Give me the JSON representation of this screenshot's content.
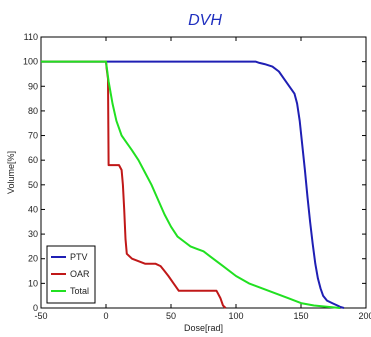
{
  "chart_data": {
    "type": "line",
    "title": "DVH",
    "xlabel": "Dose[rad]",
    "ylabel": "Volume[%]",
    "xlim": [
      -50,
      200
    ],
    "ylim": [
      0,
      110
    ],
    "x_ticks": [
      "-50",
      "0",
      "50",
      "100",
      "150",
      "200"
    ],
    "y_ticks": [
      "0",
      "10",
      "20",
      "30",
      "40",
      "50",
      "60",
      "70",
      "80",
      "90",
      "100",
      "110"
    ],
    "grid": false,
    "legend_position": "bottom-left",
    "series": [
      {
        "name": "PTV",
        "color": "#1f1fb4",
        "points": [
          [
            -50,
            100
          ],
          [
            0,
            100
          ],
          [
            50,
            100
          ],
          [
            100,
            100
          ],
          [
            115,
            100
          ],
          [
            118,
            99.5
          ],
          [
            122,
            99
          ],
          [
            128,
            98
          ],
          [
            133,
            96
          ],
          [
            137,
            93
          ],
          [
            141,
            90
          ],
          [
            145,
            87
          ],
          [
            147,
            83
          ],
          [
            149,
            76
          ],
          [
            151,
            66
          ],
          [
            153,
            56
          ],
          [
            155,
            45
          ],
          [
            157,
            35
          ],
          [
            159,
            26
          ],
          [
            161,
            18
          ],
          [
            163,
            12
          ],
          [
            165,
            8
          ],
          [
            167,
            5
          ],
          [
            170,
            3
          ],
          [
            174,
            2
          ],
          [
            178,
            1
          ],
          [
            180,
            0.5
          ],
          [
            183,
            0
          ]
        ]
      },
      {
        "name": "OAR",
        "color": "#c01818",
        "points": [
          [
            -50,
            100
          ],
          [
            0,
            100
          ],
          [
            0.5,
            97
          ],
          [
            1.5,
            93
          ],
          [
            2,
            58
          ],
          [
            10,
            58
          ],
          [
            12,
            56
          ],
          [
            13,
            50
          ],
          [
            14,
            40
          ],
          [
            15,
            28
          ],
          [
            16,
            22
          ],
          [
            20,
            20
          ],
          [
            25,
            19
          ],
          [
            30,
            18
          ],
          [
            38,
            18
          ],
          [
            42,
            17
          ],
          [
            45,
            15
          ],
          [
            48,
            13
          ],
          [
            52,
            10
          ],
          [
            56,
            7
          ],
          [
            60,
            7
          ],
          [
            85,
            7
          ],
          [
            86,
            6
          ],
          [
            88,
            4
          ],
          [
            90,
            1
          ],
          [
            92,
            0
          ]
        ]
      },
      {
        "name": "Total",
        "color": "#21e021",
        "points": [
          [
            -50,
            100
          ],
          [
            0,
            100
          ],
          [
            2,
            92
          ],
          [
            5,
            83
          ],
          [
            8,
            76
          ],
          [
            12,
            70
          ],
          [
            16,
            67
          ],
          [
            20,
            64
          ],
          [
            25,
            60
          ],
          [
            30,
            55
          ],
          [
            35,
            50
          ],
          [
            40,
            44
          ],
          [
            45,
            38
          ],
          [
            50,
            33
          ],
          [
            55,
            29
          ],
          [
            60,
            27
          ],
          [
            65,
            25
          ],
          [
            70,
            24
          ],
          [
            75,
            23
          ],
          [
            80,
            21
          ],
          [
            90,
            17
          ],
          [
            100,
            13
          ],
          [
            110,
            10
          ],
          [
            120,
            8
          ],
          [
            130,
            6
          ],
          [
            140,
            4
          ],
          [
            150,
            2
          ],
          [
            160,
            1
          ],
          [
            170,
            0.5
          ],
          [
            180,
            0
          ]
        ]
      }
    ]
  }
}
